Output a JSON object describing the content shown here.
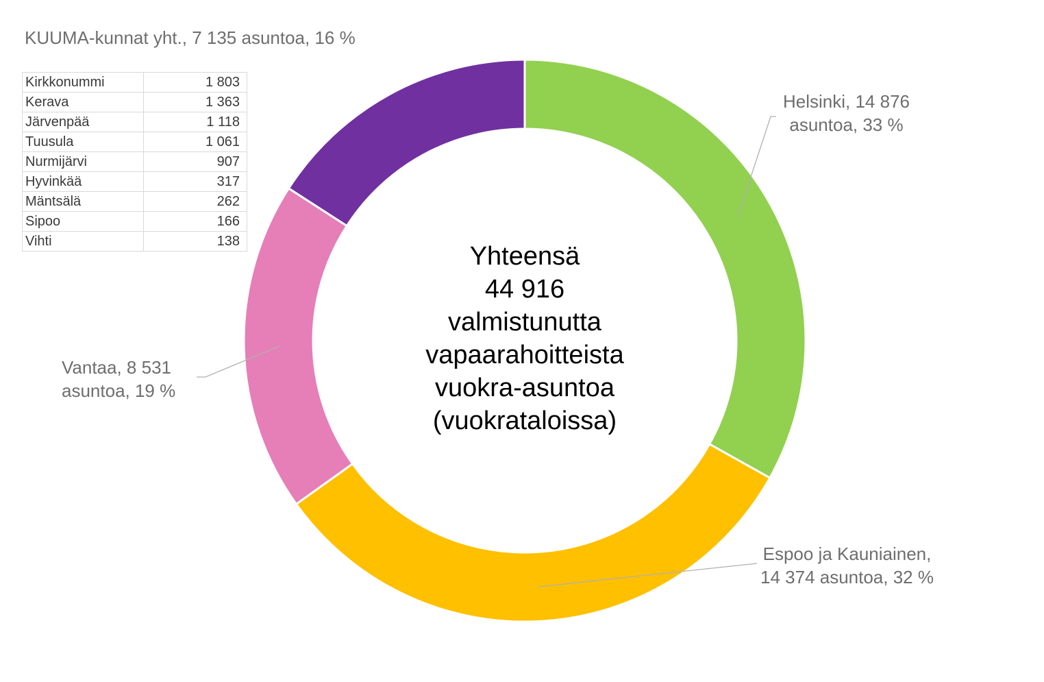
{
  "chart_data": {
    "type": "pie",
    "variant": "donut",
    "center_text": [
      "Yhteensä",
      "44 916",
      "valmistunutta",
      "vapaarahoitteista",
      "vuokra-asuntoa",
      "(vuokrataloissa)"
    ],
    "total": 44916,
    "categories": [
      "Helsinki",
      "Espoo ja Kauniainen",
      "Vantaa",
      "KUUMA-kunnat yht."
    ],
    "values": [
      14876,
      14374,
      8531,
      7135
    ],
    "percentages": [
      33,
      32,
      19,
      16
    ],
    "colors": [
      "#92d050",
      "#ffc000",
      "#e67eb8",
      "#7030a0"
    ],
    "labels": [
      {
        "line1": "Helsinki,  14 876",
        "line2": "asuntoa, 33 %"
      },
      {
        "line1": "Espoo ja Kauniainen,",
        "line2": "14 374 asuntoa, 32 %"
      },
      {
        "line1": "Vantaa,  8 531",
        "line2": "asuntoa, 19 %"
      },
      {
        "line1": "KUUMA-kunnat yht.,  7 135 asuntoa, 16 %"
      }
    ],
    "breakdown_table": {
      "title": "KUUMA-kunnat yht.,  7 135 asuntoa, 16 %",
      "rows": [
        {
          "name": "Kirkkonummi",
          "value": "1 803"
        },
        {
          "name": "Kerava",
          "value": "1 363"
        },
        {
          "name": "Järvenpää",
          "value": "1 118"
        },
        {
          "name": "Tuusula",
          "value": "1 061"
        },
        {
          "name": "Nurmijärvi",
          "value": "907"
        },
        {
          "name": "Hyvinkää",
          "value": "317"
        },
        {
          "name": "Mäntsälä",
          "value": "262"
        },
        {
          "name": "Sipoo",
          "value": "166"
        },
        {
          "name": "Vihti",
          "value": "138"
        }
      ]
    }
  }
}
